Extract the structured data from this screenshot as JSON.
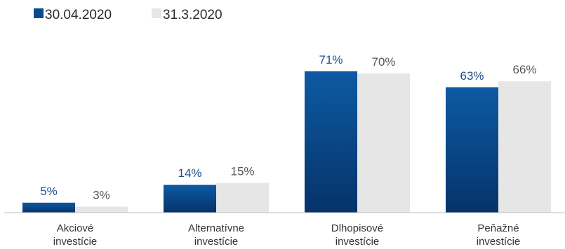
{
  "chart_data": {
    "type": "bar",
    "categories": [
      [
        "Akciové",
        "investície"
      ],
      [
        "Alternatívne",
        "investície"
      ],
      [
        "Dlhopisové",
        "investície"
      ],
      [
        "Peňažné",
        "investície"
      ]
    ],
    "series": [
      {
        "name": "30.04.2020",
        "values": [
          5,
          14,
          71,
          63
        ],
        "labels": [
          "5%",
          "14%",
          "71%",
          "63%"
        ],
        "color": "#0b4a8c",
        "label_color": "#1f4e8a"
      },
      {
        "name": "31.3.2020",
        "values": [
          3,
          15,
          70,
          66
        ],
        "labels": [
          "3%",
          "15%",
          "70%",
          "66%"
        ],
        "color": "#e6e6e6",
        "label_color": "#555555"
      }
    ],
    "ylim": [
      0,
      71
    ],
    "legend": "top-left",
    "grid": false
  }
}
